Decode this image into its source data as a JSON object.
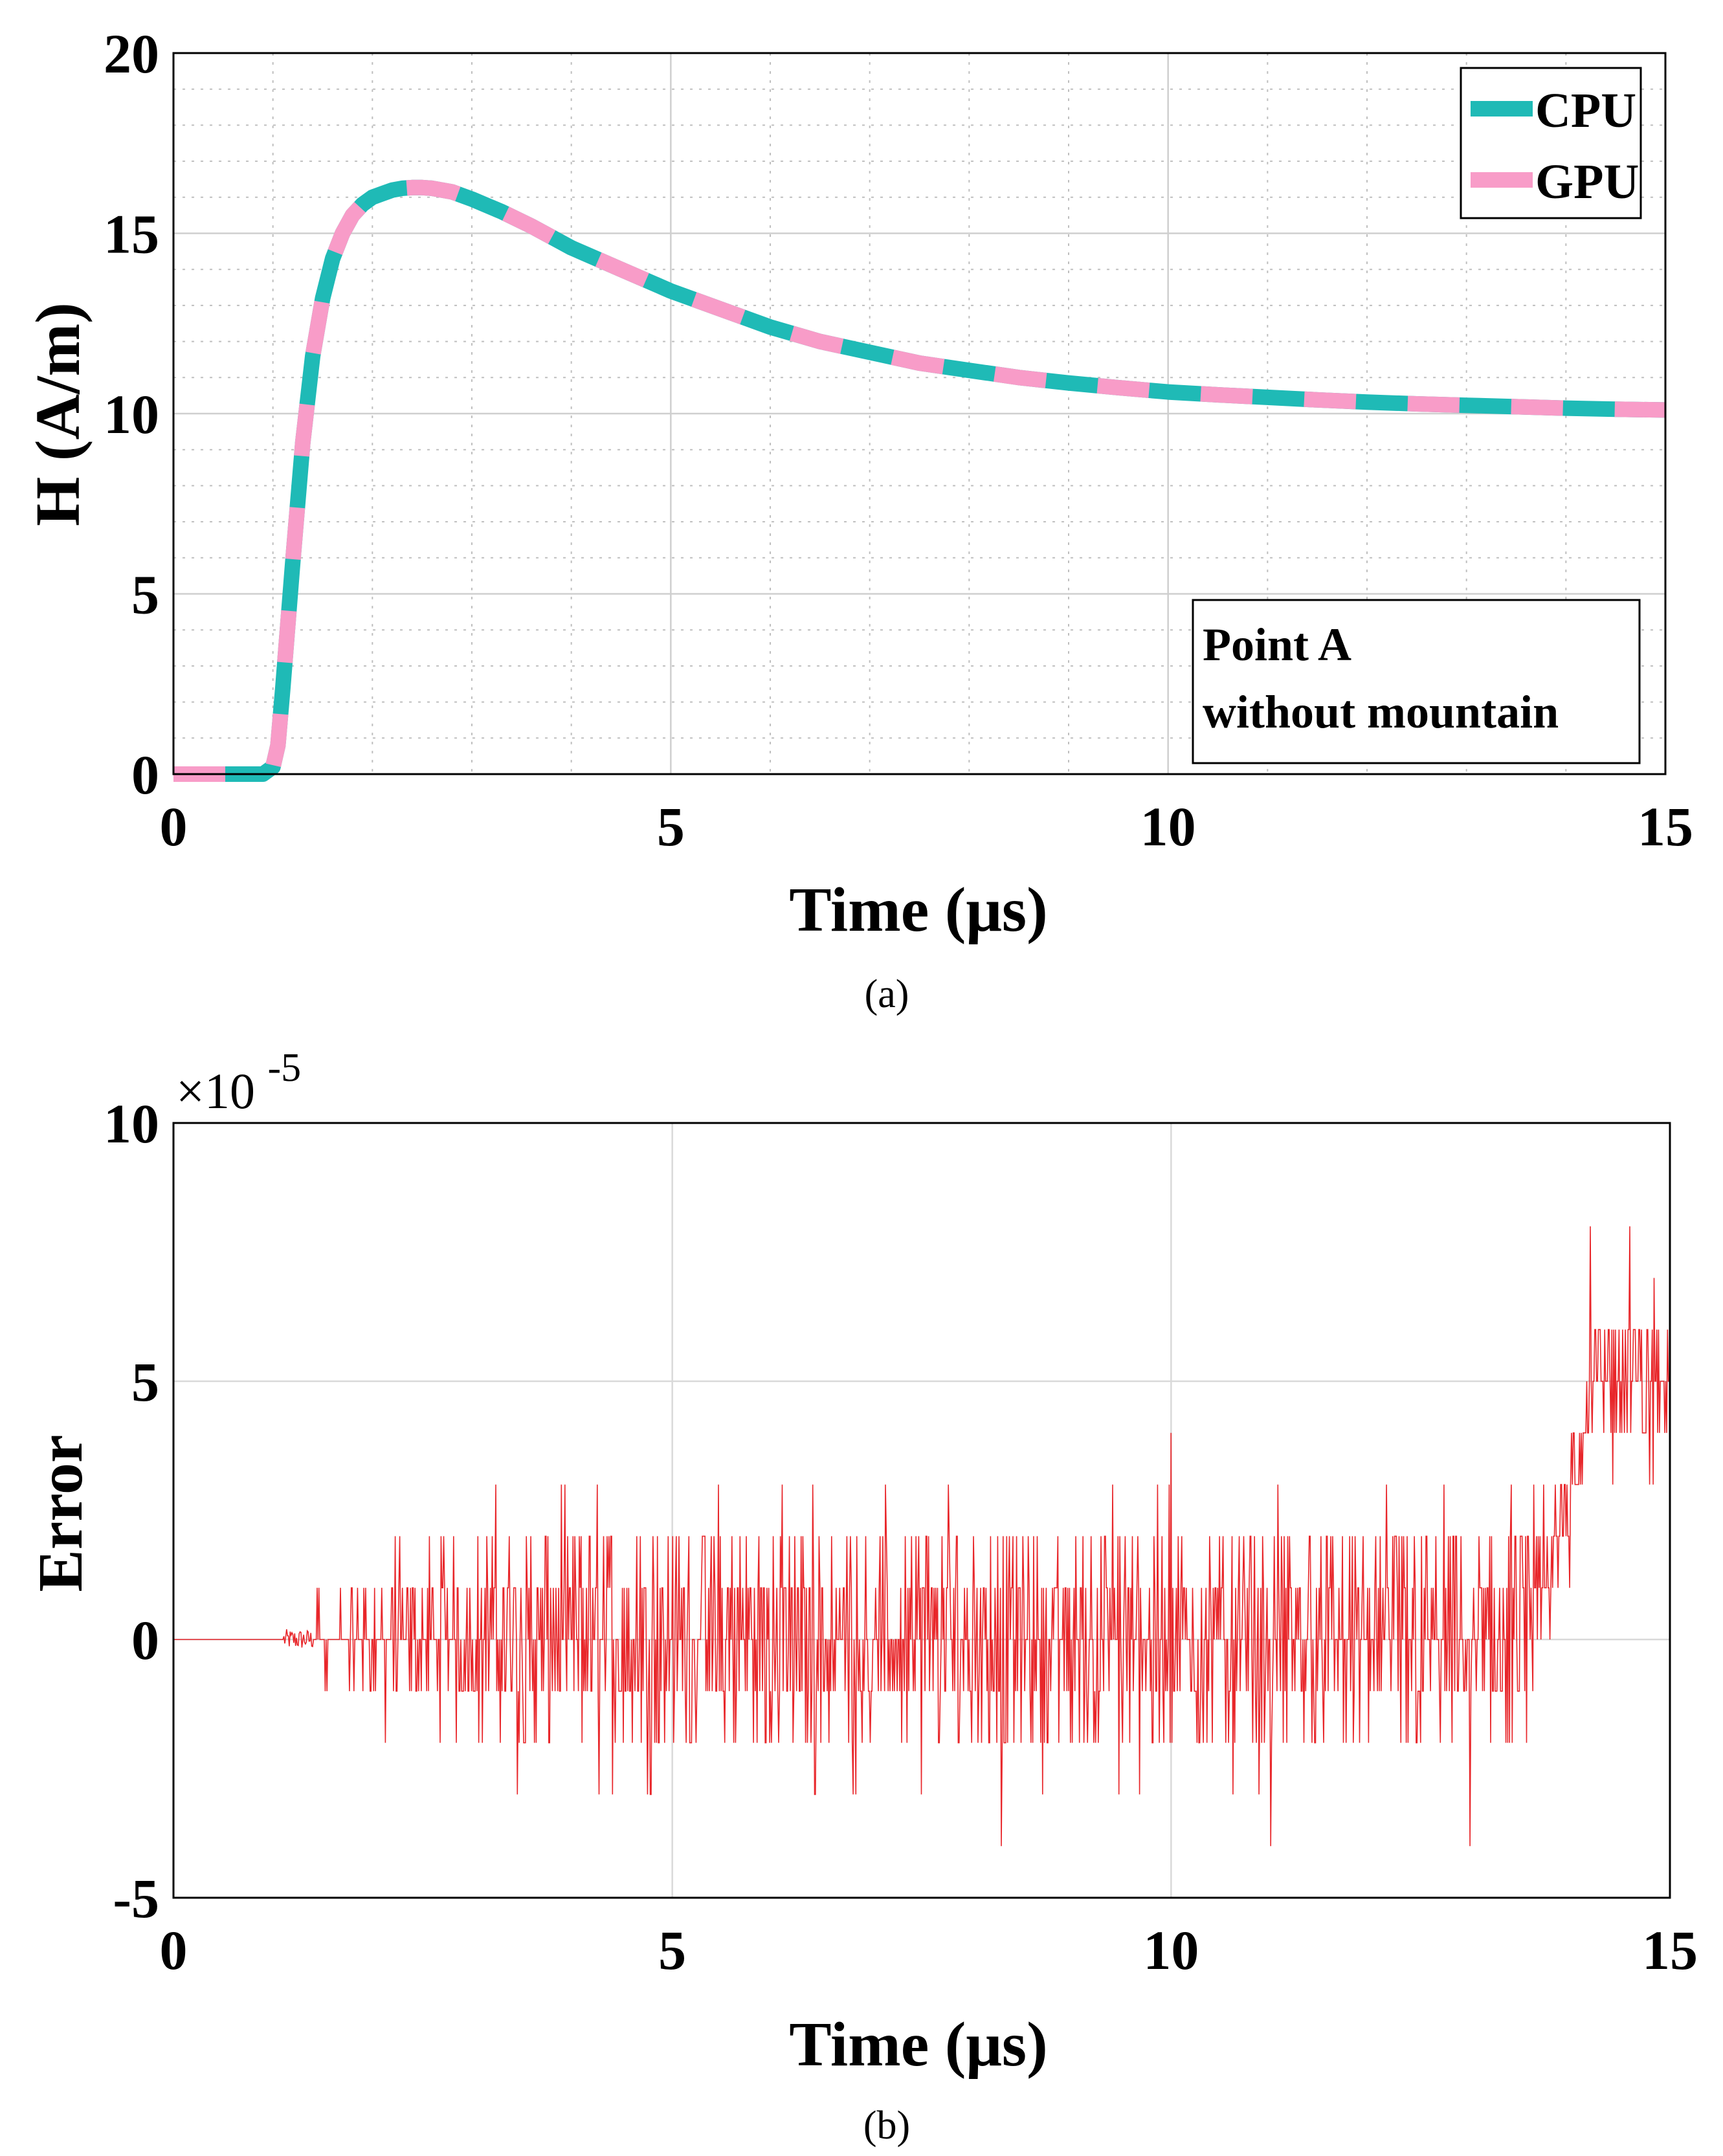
{
  "chart_data": [
    {
      "id": "a",
      "type": "line",
      "caption": "(a)",
      "xlabel": "Time (μs)",
      "ylabel": "H (A/m)",
      "xlim": [
        0,
        15
      ],
      "ylim": [
        0,
        20
      ],
      "xticks": [
        0,
        5,
        10,
        15
      ],
      "yticks": [
        0,
        5,
        10,
        15,
        20
      ],
      "xtick_labels": [
        "0",
        "5",
        "10",
        "15"
      ],
      "ytick_labels": [
        "0",
        "5",
        "10",
        "15",
        "20"
      ],
      "grid": true,
      "minor_grid": true,
      "legend_position": "top-right",
      "annotation": [
        "Point A",
        "without mountain"
      ],
      "colors": {
        "cpu": "#1fbab6",
        "gpu": "#f89cc8",
        "grid": "#cfcfcf"
      },
      "series": [
        {
          "name": "CPU",
          "style": "solid",
          "x": [
            0,
            0.5,
            0.9,
            1.0,
            1.05,
            1.1,
            1.2,
            1.3,
            1.4,
            1.5,
            1.6,
            1.7,
            1.8,
            1.9,
            2.0,
            2.1,
            2.2,
            2.3,
            2.4,
            2.5,
            2.6,
            2.8,
            3.0,
            3.3,
            3.6,
            4.0,
            4.5,
            5.0,
            5.5,
            6.0,
            6.5,
            7.0,
            7.5,
            8.0,
            8.5,
            9.0,
            9.5,
            10.0,
            10.5,
            11.0,
            11.5,
            12.0,
            12.5,
            13.0,
            13.5,
            14.0,
            14.5,
            15.0
          ],
          "values": [
            0,
            0,
            0,
            0.2,
            0.8,
            2.4,
            5.9,
            9.2,
            11.6,
            13.2,
            14.3,
            15.0,
            15.5,
            15.8,
            16.0,
            16.1,
            16.2,
            16.25,
            16.27,
            16.27,
            16.25,
            16.15,
            15.95,
            15.6,
            15.2,
            14.6,
            14.0,
            13.4,
            12.9,
            12.4,
            12.0,
            11.7,
            11.4,
            11.2,
            11.0,
            10.85,
            10.72,
            10.6,
            10.52,
            10.45,
            10.38,
            10.32,
            10.27,
            10.23,
            10.19,
            10.15,
            10.12,
            10.1
          ]
        },
        {
          "name": "GPU",
          "style": "dashed",
          "x": [
            0,
            0.5,
            0.9,
            1.0,
            1.05,
            1.1,
            1.2,
            1.3,
            1.4,
            1.5,
            1.6,
            1.7,
            1.8,
            1.9,
            2.0,
            2.1,
            2.2,
            2.3,
            2.4,
            2.5,
            2.6,
            2.8,
            3.0,
            3.3,
            3.6,
            4.0,
            4.5,
            5.0,
            5.5,
            6.0,
            6.5,
            7.0,
            7.5,
            8.0,
            8.5,
            9.0,
            9.5,
            10.0,
            10.5,
            11.0,
            11.5,
            12.0,
            12.5,
            13.0,
            13.5,
            14.0,
            14.5,
            15.0
          ],
          "values": [
            0,
            0,
            0,
            0.2,
            0.8,
            2.4,
            5.9,
            9.2,
            11.6,
            13.2,
            14.3,
            15.0,
            15.5,
            15.8,
            16.0,
            16.1,
            16.2,
            16.25,
            16.27,
            16.27,
            16.25,
            16.15,
            15.95,
            15.6,
            15.2,
            14.6,
            14.0,
            13.4,
            12.9,
            12.4,
            12.0,
            11.7,
            11.4,
            11.2,
            11.0,
            10.85,
            10.72,
            10.6,
            10.52,
            10.45,
            10.38,
            10.32,
            10.27,
            10.23,
            10.19,
            10.15,
            10.12,
            10.1
          ]
        }
      ]
    },
    {
      "id": "b",
      "type": "line",
      "caption": "(b)",
      "xlabel": "Time (μs)",
      "ylabel": "Error",
      "xlim": [
        0,
        15
      ],
      "ylim": [
        -5,
        10
      ],
      "y_multiplier": "×10",
      "y_multiplier_exponent": "-5",
      "xticks": [
        0,
        5,
        10,
        15
      ],
      "yticks": [
        -5,
        0,
        5,
        10
      ],
      "xtick_labels": [
        "0",
        "5",
        "10",
        "15"
      ],
      "ytick_labels": [
        "-5",
        "0",
        "5",
        "10"
      ],
      "grid": true,
      "colors": {
        "line": "#e8262a",
        "grid": "#d9d9d9"
      },
      "series": [
        {
          "name": "Error",
          "description_of_envelope": "zero until ~1.1 μs, noise between about -3 and 3 up to ~13.8 μs with peaks to 4 near 10 μs and -4 near 8.3 and 13 μs, then rising to 4–8 near 14–15 μs",
          "x_start": 0,
          "x_end": 15,
          "noise_start": 1.1,
          "noise_envelope": [
            {
              "x": 1.1,
              "low": -0.2,
              "high": 0.2
            },
            {
              "x": 1.4,
              "low": -1,
              "high": 1
            },
            {
              "x": 2.0,
              "low": -2,
              "high": 2
            },
            {
              "x": 3.0,
              "low": -3,
              "high": 3
            },
            {
              "x": 9.9,
              "low": -3,
              "high": 3
            },
            {
              "x": 10.0,
              "low": -3,
              "high": 4
            },
            {
              "x": 13.5,
              "low": -3,
              "high": 3
            },
            {
              "x": 13.7,
              "low": -2,
              "high": 3
            },
            {
              "x": 14.0,
              "low": 1,
              "high": 5
            },
            {
              "x": 14.3,
              "low": 3,
              "high": 8
            },
            {
              "x": 15.0,
              "low": 3,
              "high": 7
            }
          ],
          "extremes": [
            {
              "x": 8.3,
              "value": -4
            },
            {
              "x": 11.0,
              "value": -4
            },
            {
              "x": 13.0,
              "value": -4
            },
            {
              "x": 10.0,
              "value": 4
            },
            {
              "x": 14.2,
              "value": 8
            },
            {
              "x": 14.6,
              "value": 8
            }
          ]
        }
      ]
    }
  ]
}
